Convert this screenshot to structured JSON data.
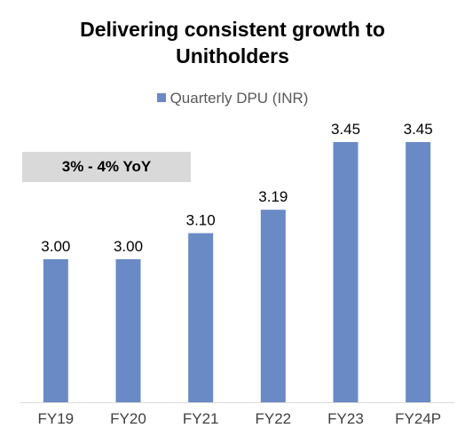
{
  "title_line1": "Delivering consistent growth to",
  "title_line2": "Unitholders",
  "callout": "3% - 4% YoY",
  "colors": {
    "bar": "#6a8ac6",
    "axis": "#d9d9d9",
    "callout_bg": "#d9d9d9"
  },
  "chart_data": {
    "type": "bar",
    "title": "Delivering consistent growth to Unitholders",
    "categories": [
      "FY19",
      "FY20",
      "FY21",
      "FY22",
      "FY23",
      "FY24P"
    ],
    "series": [
      {
        "name": "Quarterly DPU (INR)",
        "values": [
          3.0,
          3.0,
          3.1,
          3.19,
          3.45,
          3.45
        ],
        "labels": [
          "3.00",
          "3.00",
          "3.10",
          "3.19",
          "3.45",
          "3.45"
        ]
      }
    ],
    "ylim": [
      2.45,
      3.45
    ],
    "grid": false,
    "legend": "top-center",
    "annotations": [
      "3% - 4% YoY"
    ]
  }
}
